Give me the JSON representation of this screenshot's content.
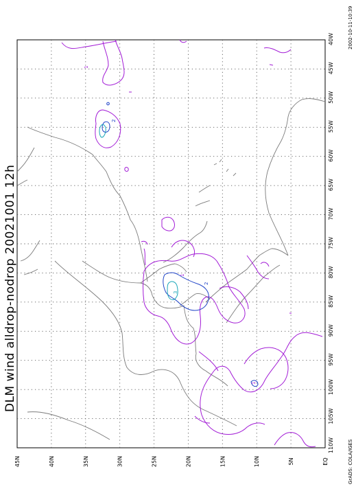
{
  "title": "DLM wind alldrop-nodrop 20021001 12h",
  "credit_left": "GrADS: COLA/IGES",
  "credit_right": "2002-10-11-10:39",
  "lon_labels": [
    "110W",
    "105W",
    "100W",
    "95W",
    "90W",
    "85W",
    "80W",
    "75W",
    "70W",
    "65W",
    "60W",
    "55W",
    "50W",
    "45W",
    "40W"
  ],
  "lat_labels": [
    "EQ",
    "5N",
    "10N",
    "15N",
    "20N",
    "25N",
    "30N",
    "35N",
    "40N",
    "45N"
  ],
  "contour_labels": [
    "1",
    "2",
    "3"
  ],
  "colors": {
    "contour_1": "#a21bd6",
    "contour_2": "#1f43c7",
    "contour_3": "#19a6b8",
    "coastline": "#7a7a7a"
  }
}
